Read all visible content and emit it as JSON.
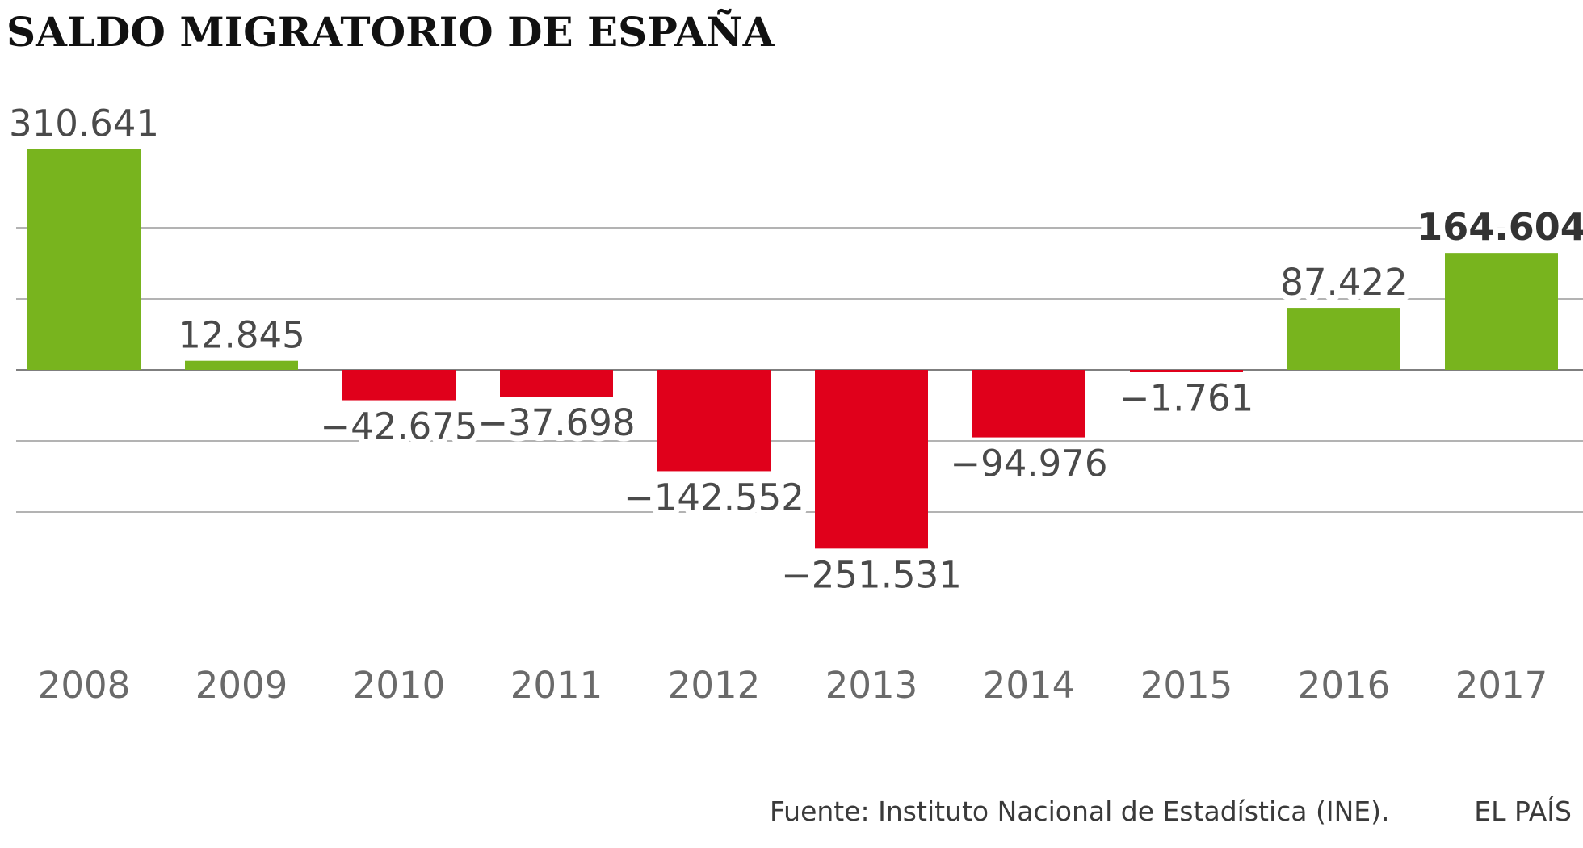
{
  "chart_data": {
    "type": "bar",
    "title": "SALDO MIGRATORIO DE ESPAÑA",
    "categories": [
      "2008",
      "2009",
      "2010",
      "2011",
      "2012",
      "2013",
      "2014",
      "2015",
      "2016",
      "2017"
    ],
    "values": [
      310641,
      12845,
      -42675,
      -37698,
      -142552,
      -251531,
      -94976,
      -1761,
      87422,
      164604
    ],
    "value_labels": [
      "310.641",
      "12.845",
      "−42.675",
      "−37.698",
      "−142.552",
      "−251.531",
      "−94.976",
      "−1.761",
      "87.422",
      "164.604"
    ],
    "highlight_index": 9,
    "ylim": [
      -300000,
      300000
    ],
    "gridline_step": 100000,
    "grid": true,
    "colors": {
      "positive": "#78b41e",
      "negative": "#e0001b",
      "grid": "#9a9a9a",
      "axis_label": "#6a6a6a",
      "value_label": "#4a4a4a",
      "highlight_label": "#333333"
    }
  },
  "footer": {
    "source": "Fuente: Instituto Nacional de Estadística (INE).",
    "brand": "EL PAÍS"
  }
}
